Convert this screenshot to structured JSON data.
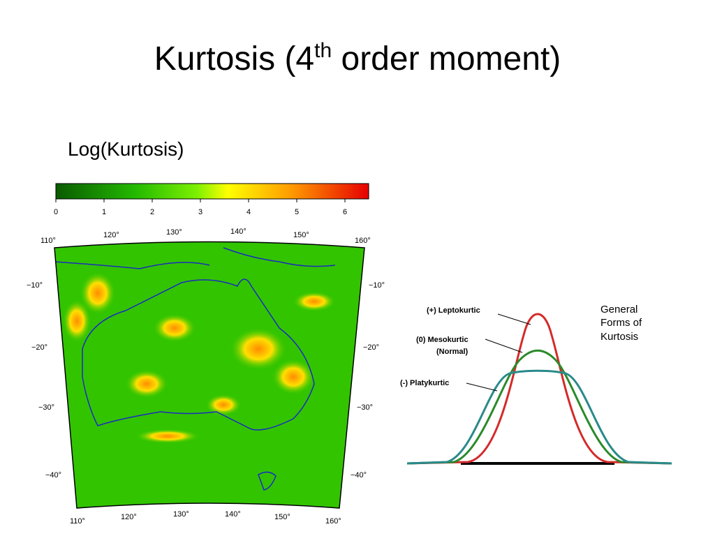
{
  "title": {
    "text": "Kurtosis (4",
    "superscript": "th",
    "rest": " order moment)"
  },
  "subtitle": "Log(Kurtosis)",
  "colorbar": {
    "ticks": [
      0,
      1,
      2,
      3,
      4,
      5,
      6
    ]
  },
  "map": {
    "top_labels": [
      "110°",
      "120°",
      "130°",
      "140°",
      "150°",
      "160°"
    ],
    "bottom_labels": [
      "110°",
      "120°",
      "130°",
      "140°",
      "150°",
      "160°"
    ],
    "left_labels": [
      "−10°",
      "−20°",
      "−30°",
      "−40°"
    ],
    "right_labels": [
      "−10°",
      "−20°",
      "−30°",
      "−40°"
    ]
  },
  "diagram": {
    "leptokurtic": "(+) Leptokurtic",
    "mesokurtic": "(0) Mesokurtic",
    "normal": "(Normal)",
    "platykurtic": "(-) Platykurtic",
    "legend": [
      "General",
      "Forms of",
      "Kurtosis"
    ]
  }
}
